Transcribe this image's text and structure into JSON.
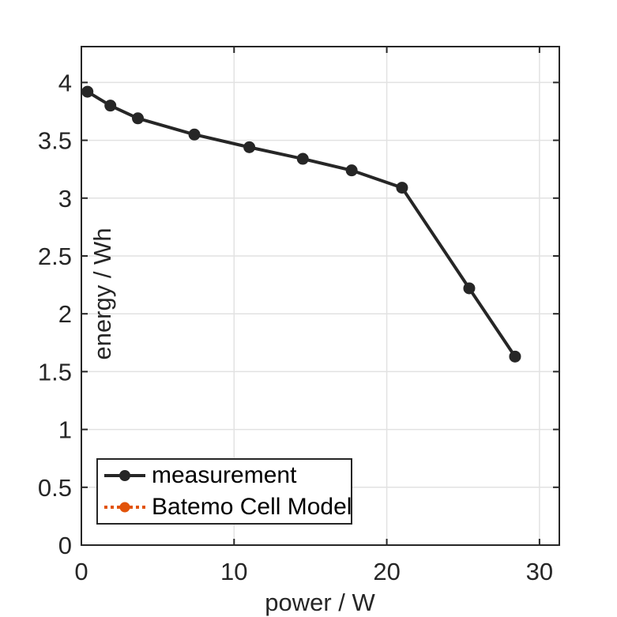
{
  "figure": {
    "background_color": "#ffffff"
  },
  "chart_data": {
    "type": "line",
    "title": "",
    "xlabel": "power / W",
    "ylabel": "energy / Wh",
    "xlim": [
      0,
      31.3
    ],
    "ylim": [
      0,
      4.31
    ],
    "xtick_values": [
      0,
      10,
      20,
      30
    ],
    "xtick_labels": [
      "0",
      "10",
      "20",
      "30"
    ],
    "ytick_values": [
      0,
      0.5,
      1,
      1.5,
      2,
      2.5,
      3,
      3.5,
      4
    ],
    "ytick_labels": [
      "0",
      "0.5",
      "1",
      "1.5",
      "2",
      "2.5",
      "3",
      "3.5",
      "4"
    ],
    "grid": true,
    "grid_color": "#e2e2e2",
    "axis_color": "#262626",
    "tick_label_color": "#262626",
    "series": [
      {
        "name": "measurement",
        "color": "#262626",
        "line_style": "solid",
        "line_width": 4,
        "marker": "filled-circle",
        "marker_radius": 7.5,
        "visible_on_plot": true,
        "x": [
          0.4,
          1.9,
          3.7,
          7.4,
          11.0,
          14.5,
          17.7,
          21.0,
          25.4,
          28.4
        ],
        "y": [
          3.92,
          3.8,
          3.69,
          3.55,
          3.44,
          3.34,
          3.24,
          3.09,
          2.22,
          1.63
        ]
      },
      {
        "name": "Batemo Cell Model",
        "color": "#e2530a",
        "line_style": "dotted",
        "line_width": 4,
        "marker": "filled-circle",
        "marker_radius": 6.5,
        "visible_on_plot": false,
        "x": [],
        "y": []
      }
    ],
    "legend": {
      "position": "inside-bottom-left",
      "entries": [
        "measurement",
        "Batemo Cell Model"
      ]
    }
  }
}
